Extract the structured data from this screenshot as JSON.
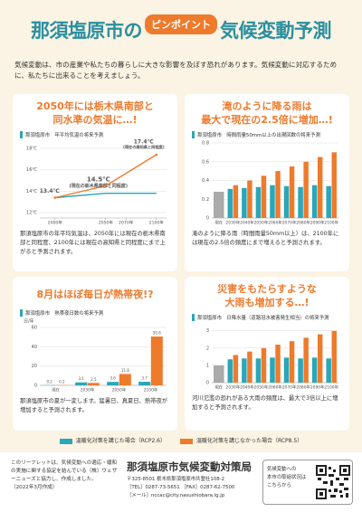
{
  "header": {
    "title_left": "那須塩原市の",
    "badge": "ピンポイント",
    "title_right": "気候変動予測",
    "intro": "気候変動は、市の産業や私たちの暮らしに大きな影響を及ぼす恐れがあります。気候変動に対応するために、私たちに出来ることを考えましょう。"
  },
  "panels": [
    {
      "headline": [
        "2050年には栃木県南部と",
        "同水準の気温に…!"
      ],
      "description": "那須塩原市の年平均気温は、2050年には現在の栃木県南部と同程度、2100年には現在の高知県と同程度にまで上がると予測されます。"
    },
    {
      "headline": [
        "滝のように降る雨は",
        "最大で現在の2.5倍に増加…!"
      ],
      "description": "滝のように降る雨（時間雨量50mm以上）は、2100年には現在の2.5倍の頻度にまで増えると予測されます。"
    },
    {
      "headline": [
        "8月はほぼ毎日が熱帯夜!?"
      ],
      "description": "那須塩原市の夏が一変します。猛暑日、真夏日、熱帯夜が増加すると予測されます。"
    },
    {
      "headline": [
        "災害をもたらすような",
        "大雨も増加する…!"
      ],
      "description": "河川氾濫の恐れがある大雨の頻度は、最大で3倍以上に増加すると予測されます。"
    }
  ],
  "chart_data": [
    {
      "type": "line",
      "title": "那須塩原市　年平均気温の将来予測",
      "x": [
        2000,
        2050,
        2100
      ],
      "series": [
        {
          "color": "#2aa7b8",
          "values": [
            13.4,
            13.8,
            13.8
          ]
        },
        {
          "color": "#ee7a2c",
          "values": [
            13.4,
            14.5,
            17.4
          ]
        }
      ],
      "xlim": [
        1985,
        2110
      ],
      "xticks": [
        {
          "value": 2000,
          "label": "2000年"
        },
        {
          "value": 2050,
          "label": "2050年"
        },
        {
          "value": 2070,
          "label": "2070年"
        },
        {
          "value": 2100,
          "label": "2100年"
        }
      ],
      "ylim": [
        11.5,
        18.5
      ],
      "yticks": [
        {
          "value": 12,
          "label": "12℃"
        },
        {
          "value": 14,
          "label": "14℃"
        },
        {
          "value": 16,
          "label": "16℃"
        },
        {
          "value": 18,
          "label": "18℃"
        }
      ],
      "grid": true,
      "annotations": [
        "13.4℃",
        "14.5℃",
        "(現在の栃木県南部と同程度)",
        "17.4℃",
        "(現在の高知県と同程度)"
      ]
    },
    {
      "type": "bar",
      "title": "那須塩原市　時間雨量50mm以上の出現回数の将来予測",
      "categories": [
        "現在",
        "2030年",
        "2040年",
        "2050年",
        "2060年",
        "2070年",
        "2080年",
        "2090年",
        "2100年"
      ],
      "series": [
        {
          "color": "#aaaaaa",
          "values": [
            0.28,
            null,
            null,
            null,
            null,
            null,
            null,
            null,
            null
          ]
        },
        {
          "color": "#2aa7b8",
          "values": [
            null,
            0.31,
            0.32,
            0.33,
            0.35,
            0.34,
            0.33,
            0.35,
            0.34
          ]
        },
        {
          "color": "#ee7a2c",
          "values": [
            null,
            0.35,
            0.4,
            0.45,
            0.5,
            0.55,
            0.6,
            0.65,
            0.7
          ]
        }
      ],
      "ylim": [
        0,
        0.8
      ],
      "yticks": [
        0,
        0.2,
        0.4,
        0.6,
        0.8
      ],
      "grid": true
    },
    {
      "type": "bar",
      "title": "那須塩原市　熱帯夜日数の将来予測",
      "y_label": "日/年",
      "categories": [
        "現在",
        "2030年",
        "2050年",
        "2100年"
      ],
      "series": [
        {
          "color": "#2aa7b8",
          "values": [
            0.2,
            3.1,
            3.6,
            3.7
          ]
        },
        {
          "color": "#ee7a2c",
          "values": [
            0.2,
            2.5,
            11.8,
            50.6
          ]
        }
      ],
      "ylim": [
        0,
        60
      ],
      "yticks": [
        0,
        20,
        40,
        60
      ],
      "grid": true,
      "show_values": true
    },
    {
      "type": "bar",
      "title": "那須塩原市　日降水量（道路冠水被害発生相当）の将来予測",
      "categories": [
        "現在",
        "2030年",
        "2040年",
        "2050年",
        "2060年",
        "2070年",
        "2080年",
        "2090年",
        "2100年"
      ],
      "series": [
        {
          "color": "#aaaaaa",
          "values": [
            1.0,
            null,
            null,
            null,
            null,
            null,
            null,
            null,
            null
          ]
        },
        {
          "color": "#2aa7b8",
          "values": [
            null,
            1.35,
            1.4,
            1.4,
            1.45,
            1.45,
            1.4,
            1.45,
            1.4
          ]
        },
        {
          "color": "#ee7a2c",
          "values": [
            null,
            1.6,
            1.8,
            2.0,
            2.2,
            2.4,
            2.6,
            2.8,
            3.0
          ]
        }
      ],
      "ylim": [
        0,
        3.3
      ],
      "yticks": [
        0,
        1,
        2,
        3
      ],
      "grid": true
    }
  ],
  "legend": [
    {
      "label": "温暖化対策を講じた場合（RCP2.6）",
      "color": "#2aa7b8"
    },
    {
      "label": "温暖化対策を講じなかった場合（RCP8.5）",
      "color": "#ee7a2c"
    }
  ],
  "footer": {
    "note": "このリーフレットは、気候変動への適応・緩和の実施に関する協定を結んでいる（株）ウェザーニューズと協力し、作成しました。",
    "date": "（2022年3月作成）",
    "org": "那須塩原市気候変動対策局",
    "address": "〒325-8501 栃木県那須塩原市共墾社108-2",
    "phone": "［TEL］0287-73-5651 ［FAX］0287-62-7500",
    "mail": "［メール］nccac@city.nasushiobara.lg.jp",
    "qr_text": [
      "気候変動への",
      "本市の取組状況は",
      "こちらから"
    ]
  }
}
